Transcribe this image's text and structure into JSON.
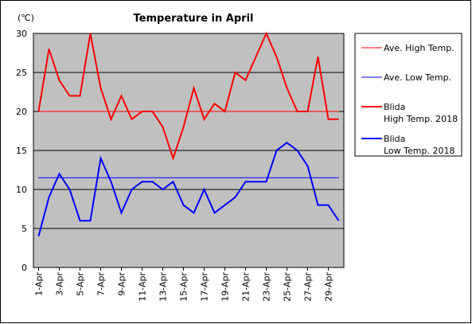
{
  "chart_data": {
    "type": "line",
    "title": "Temperature in April",
    "unit_label": "(℃)",
    "xlabel": "",
    "ylabel": "",
    "ylim": [
      0,
      30
    ],
    "yticks": [
      0,
      5,
      10,
      15,
      20,
      25,
      30
    ],
    "grid": "horizontal",
    "legend_position": "right",
    "plot_background": "#c0c0c0",
    "x": [
      1,
      2,
      3,
      4,
      5,
      6,
      7,
      8,
      9,
      10,
      11,
      12,
      13,
      14,
      15,
      16,
      17,
      18,
      19,
      20,
      21,
      22,
      23,
      24,
      25,
      26,
      27,
      28,
      29,
      30
    ],
    "x_tick_labels": [
      "1-Apr",
      "3-Apr",
      "5-Apr",
      "7-Apr",
      "9-Apr",
      "11-Apr",
      "13-Apr",
      "15-Apr",
      "17-Apr",
      "19-Apr",
      "21-Apr",
      "23-Apr",
      "25-Apr",
      "27-Apr",
      "29-Apr"
    ],
    "x_tick_days": [
      1,
      3,
      5,
      7,
      9,
      11,
      13,
      15,
      17,
      19,
      21,
      23,
      25,
      27,
      29
    ],
    "series": [
      {
        "name": "Ave. High Temp.",
        "kind": "average",
        "color": "#ff0000",
        "values": [
          20,
          20,
          20,
          20,
          20,
          20,
          20,
          20,
          20,
          20,
          20,
          20,
          20,
          20,
          20,
          20,
          20,
          20,
          20,
          20,
          20,
          20,
          20,
          20,
          20,
          20,
          20,
          20,
          20,
          20
        ]
      },
      {
        "name": "Ave. Low Temp.",
        "kind": "average",
        "color": "#0000ff",
        "values": [
          11.5,
          11.5,
          11.5,
          11.5,
          11.5,
          11.5,
          11.5,
          11.5,
          11.5,
          11.5,
          11.5,
          11.5,
          11.5,
          11.5,
          11.5,
          11.5,
          11.5,
          11.5,
          11.5,
          11.5,
          11.5,
          11.5,
          11.5,
          11.5,
          11.5,
          11.5,
          11.5,
          11.5,
          11.5,
          11.5
        ]
      },
      {
        "name": "Blida High Temp. 2018",
        "legend_lines": [
          "Blida",
          "High Temp. 2018"
        ],
        "kind": "daily",
        "color": "#ff0000",
        "values": [
          20,
          28,
          24,
          22,
          22,
          30,
          23,
          19,
          22,
          19,
          20,
          20,
          18,
          14,
          18,
          23,
          19,
          21,
          20,
          25,
          24,
          27,
          30,
          27,
          23,
          20,
          20,
          27,
          19,
          19
        ]
      },
      {
        "name": "Blida Low Temp. 2018",
        "legend_lines": [
          "Blida",
          "Low Temp. 2018"
        ],
        "kind": "daily",
        "color": "#0000ff",
        "values": [
          4,
          9,
          12,
          10,
          6,
          6,
          14,
          11,
          7,
          10,
          11,
          11,
          10,
          11,
          8,
          7,
          10,
          7,
          8,
          9,
          11,
          11,
          11,
          15,
          16,
          15,
          13,
          8,
          8,
          6
        ]
      }
    ]
  }
}
